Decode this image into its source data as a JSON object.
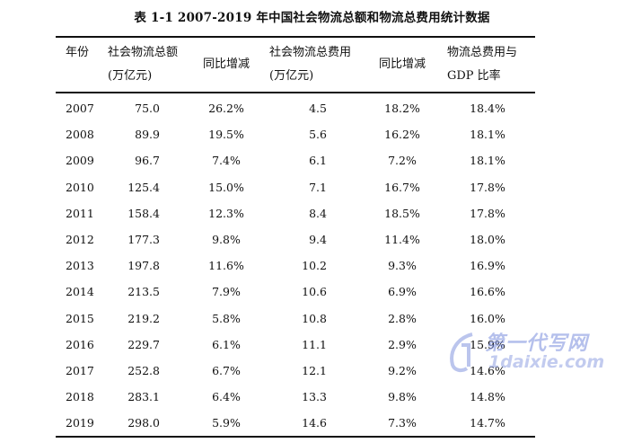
{
  "caption": "表 1-1  2007-2019 年中国社会物流总额和物流总费用统计数据",
  "headers": [
    {
      "line1": "年份",
      "line2": ""
    },
    {
      "line1": "社会物流总额",
      "line2": "(万亿元)"
    },
    {
      "line1": "同比增减",
      "line2": ""
    },
    {
      "line1": "社会物流总费用",
      "line2": "(万亿元)"
    },
    {
      "line1": "同比增减",
      "line2": ""
    },
    {
      "line1": "物流总费用与",
      "line2": "GDP 比率"
    }
  ],
  "rows": [
    [
      "2007",
      "75.0",
      "26.2%",
      "4.5",
      "18.2%",
      "18.4%"
    ],
    [
      "2008",
      "89.9",
      "19.5%",
      "5.6",
      "16.2%",
      "18.1%"
    ],
    [
      "2009",
      "96.7",
      "7.4%",
      "6.1",
      "7.2%",
      "18.1%"
    ],
    [
      "2010",
      "125.4",
      "15.0%",
      "7.1",
      "16.7%",
      "17.8%"
    ],
    [
      "2011",
      "158.4",
      "12.3%",
      "8.4",
      "18.5%",
      "17.8%"
    ],
    [
      "2012",
      "177.3",
      "9.8%",
      "9.4",
      "11.4%",
      "18.0%"
    ],
    [
      "2013",
      "197.8",
      "11.6%",
      "10.2",
      "9.3%",
      "16.9%"
    ],
    [
      "2014",
      "213.5",
      "7.9%",
      "10.6",
      "6.9%",
      "16.6%"
    ],
    [
      "2015",
      "219.2",
      "5.8%",
      "10.8",
      "2.8%",
      "16.0%"
    ],
    [
      "2016",
      "229.7",
      "6.1%",
      "11.1",
      "2.9%",
      "15.9%"
    ],
    [
      "2017",
      "252.8",
      "6.7%",
      "12.1",
      "9.2%",
      "14.6%"
    ],
    [
      "2018",
      "283.1",
      "6.4%",
      "13.3",
      "9.8%",
      "14.8%"
    ],
    [
      "2019",
      "298.0",
      "5.9%",
      "14.6",
      "7.3%",
      "14.7%"
    ]
  ],
  "watermark": {
    "text": "第一代写网",
    "url": "1daixie.com",
    "color": "#7f8fe0"
  }
}
